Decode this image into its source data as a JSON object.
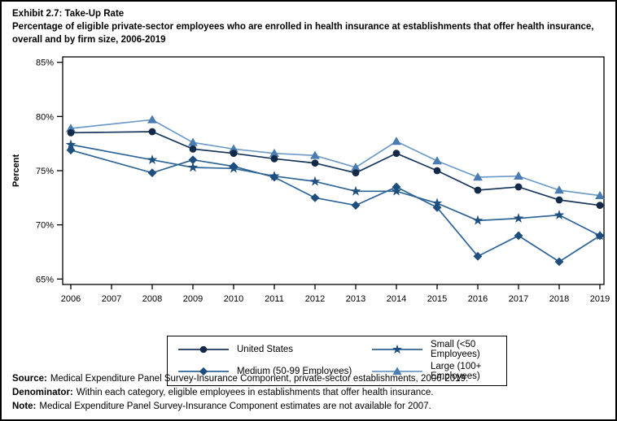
{
  "header": {
    "title": "Exhibit 2.7: Take-Up Rate",
    "subtitle": "Percentage of eligible private-sector employees who are enrolled in health insurance at establishments that offer health insurance, overall and by firm size, 2006-2019"
  },
  "chart_data": {
    "type": "line",
    "title": "Exhibit 2.7: Take-Up Rate",
    "ylabel": "Percent",
    "xlabel": "",
    "grid": false,
    "legend_position": "bottom",
    "axis_color": "#000000",
    "ylim": [
      64.5,
      85.5
    ],
    "y_ticks": [
      {
        "value": 85,
        "label": "85%"
      },
      {
        "value": 80,
        "label": "80%"
      },
      {
        "value": 75,
        "label": "75%"
      },
      {
        "value": 70,
        "label": "70%"
      },
      {
        "value": 65,
        "label": "65%"
      }
    ],
    "x_ticks": [
      2006,
      2007,
      2008,
      2009,
      2010,
      2011,
      2012,
      2013,
      2014,
      2015,
      2016,
      2017,
      2018,
      2019
    ],
    "years": [
      2006,
      2008,
      2009,
      2010,
      2011,
      2012,
      2013,
      2014,
      2015,
      2016,
      2017,
      2018,
      2019
    ],
    "series": [
      {
        "name": "United States",
        "marker": "circle",
        "line_color": "#17365d",
        "marker_color": "#122a47",
        "values": [
          78.5,
          78.6,
          77.0,
          76.6,
          76.1,
          75.7,
          74.8,
          76.6,
          75.0,
          73.2,
          73.5,
          72.3,
          71.8
        ]
      },
      {
        "name": "Small (<50 Employees)",
        "marker": "star",
        "line_color": "#2e6496",
        "marker_color": "#1d4e7e",
        "values": [
          77.4,
          76.0,
          75.3,
          75.2,
          74.5,
          74.0,
          73.1,
          73.1,
          72.0,
          70.4,
          70.6,
          70.9,
          69.0
        ]
      },
      {
        "name": "Medium (50-99 Employees)",
        "marker": "diamond",
        "line_color": "#2e6496",
        "marker_color": "#1d4e7e",
        "values": [
          76.9,
          74.8,
          76.0,
          75.4,
          74.4,
          72.5,
          71.8,
          73.5,
          71.6,
          67.1,
          69.0,
          66.6,
          69.0
        ]
      },
      {
        "name": "Large (100+ Employees)",
        "marker": "triangle",
        "line_color": "#6e9bc8",
        "marker_color": "#4a7cb2",
        "values": [
          78.9,
          79.7,
          77.6,
          77.0,
          76.6,
          76.4,
          75.3,
          77.7,
          75.9,
          74.4,
          74.5,
          73.2,
          72.7
        ]
      }
    ]
  },
  "footer": {
    "lines": [
      {
        "label": "Source:",
        "text": "Medical Expenditure Panel Survey-Insurance Component, private-sector establishments, 2006-2019."
      },
      {
        "label": "Denominator:",
        "text": "Within each category, eligible employees in establishments that offer health insurance."
      },
      {
        "label": "Note:",
        "text": "Medical Expenditure Panel Survey-Insurance Component estimates are not available for 2007."
      }
    ]
  }
}
